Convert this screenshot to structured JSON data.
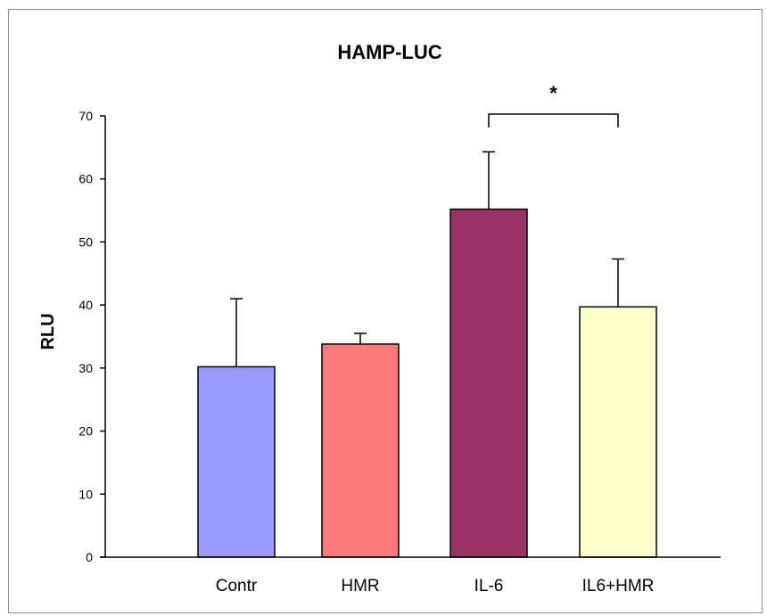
{
  "chart_data": {
    "type": "bar",
    "title": "HAMP-LUC",
    "xlabel": "",
    "ylabel": "RLU",
    "ylim": [
      0,
      70
    ],
    "yticks": [
      0,
      10,
      20,
      30,
      40,
      50,
      60,
      70
    ],
    "categories": [
      "Contr",
      "HMR",
      "IL-6",
      "IL6+HMR"
    ],
    "values": [
      30.2,
      33.8,
      55.2,
      39.7
    ],
    "error_upper": [
      10.8,
      1.7,
      9.1,
      7.6
    ],
    "colors": [
      "#9999ff",
      "#ff7b7b",
      "#993366",
      "#ffffcc"
    ],
    "significance": {
      "from": "IL-6",
      "to": "IL6+HMR",
      "label": "*"
    },
    "grid": false,
    "legend": "none"
  }
}
